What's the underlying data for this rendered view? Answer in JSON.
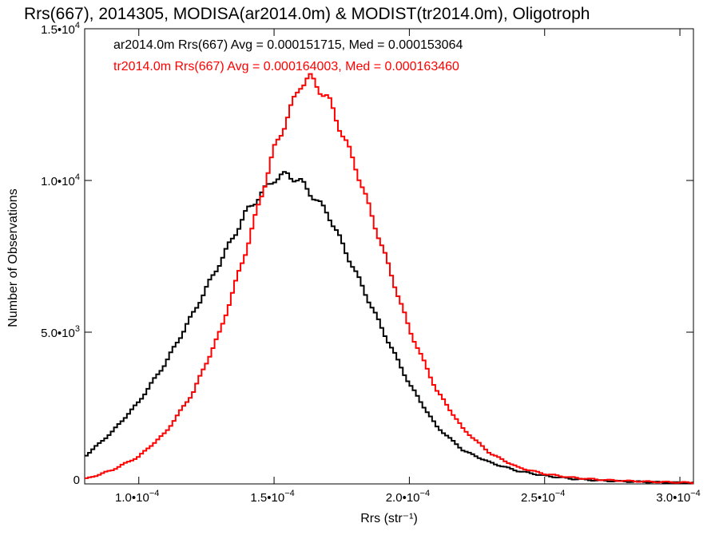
{
  "chart_data": {
    "type": "line",
    "style": "step",
    "title": "Rrs(667), 2014305, MODISA(ar2014.0m) & MODIST(tr2014.0m), Oligotroph",
    "xlabel": "Rrs (str⁻¹)",
    "ylabel": "Number of Observations",
    "xlim": [
      8e-05,
      0.000305
    ],
    "ylim": [
      0,
      15000
    ],
    "x_ticks": [
      {
        "value": 0.0001,
        "mantissa": "1.0•10",
        "exp": "−4"
      },
      {
        "value": 0.00015,
        "mantissa": "1.5•10",
        "exp": "−4"
      },
      {
        "value": 0.0002,
        "mantissa": "2.0•10",
        "exp": "−4"
      },
      {
        "value": 0.00025,
        "mantissa": "2.5•10",
        "exp": "−4"
      },
      {
        "value": 0.0003,
        "mantissa": "3.0•10",
        "exp": "−4"
      }
    ],
    "y_ticks": [
      {
        "value": 0,
        "mantissa": "0",
        "exp": ""
      },
      {
        "value": 5000,
        "mantissa": "5.0•10",
        "exp": "3"
      },
      {
        "value": 10000,
        "mantissa": "1.0•10",
        "exp": "4"
      },
      {
        "value": 15000,
        "mantissa": "1.5•10",
        "exp": "4"
      }
    ],
    "grid": false,
    "annotations": [
      {
        "text": "ar2014.0m Rrs(667) Avg = 0.000151715, Med = 0.000153064",
        "color": "#000000"
      },
      {
        "text": "tr2014.0m Rrs(667) Avg = 0.000164003, Med = 0.000163460",
        "color": "#ff0000"
      }
    ],
    "series": [
      {
        "color": "#000000",
        "x": [
          8e-05,
          9e-05,
          0.0001,
          0.00011,
          0.00012,
          0.00013,
          0.00014,
          0.00015,
          0.000155,
          0.00016,
          0.00017,
          0.00018,
          0.00019,
          0.0002,
          0.00021,
          0.00022,
          0.00023,
          0.00024,
          0.00025,
          0.00026,
          0.00027,
          0.00028,
          0.00029,
          0.0003,
          0.000305
        ],
        "values": [
          900,
          1700,
          2700,
          4000,
          5600,
          7300,
          9000,
          10050,
          10200,
          9950,
          8900,
          7000,
          5100,
          3300,
          1900,
          1100,
          700,
          430,
          270,
          170,
          110,
          80,
          60,
          40,
          30
        ]
      },
      {
        "color": "#ff0000",
        "x": [
          8e-05,
          9e-05,
          0.0001,
          0.00011,
          0.00012,
          0.00013,
          0.00014,
          0.00015,
          0.00016,
          0.000163,
          0.00017,
          0.00018,
          0.00019,
          0.0002,
          0.00021,
          0.00022,
          0.00023,
          0.00024,
          0.00025,
          0.00026,
          0.00027,
          0.00028,
          0.00029,
          0.0003,
          0.000305
        ],
        "values": [
          150,
          450,
          900,
          1700,
          3000,
          5000,
          7800,
          11000,
          13200,
          13400,
          12700,
          10500,
          7800,
          5100,
          3100,
          1800,
          1000,
          550,
          330,
          210,
          140,
          100,
          70,
          50,
          40
        ]
      }
    ]
  }
}
